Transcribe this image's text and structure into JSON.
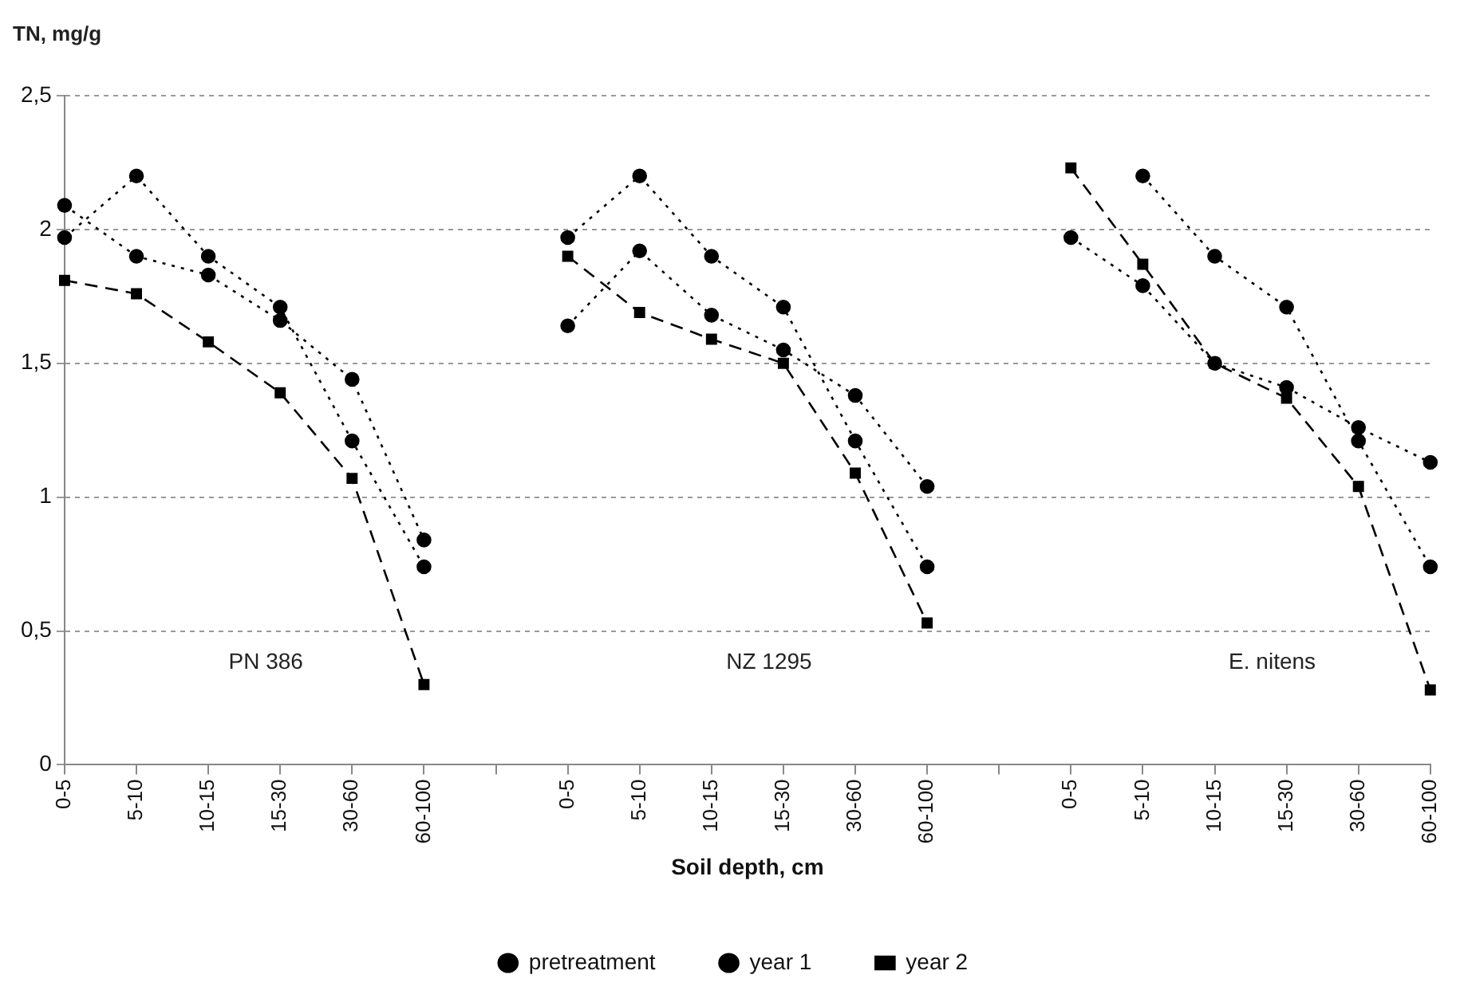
{
  "chart_data": {
    "type": "line",
    "xlabel": "Soil depth, cm",
    "ylabel": "TN, mg/g",
    "categories": [
      "0-5",
      "5-10",
      "10-15",
      "15-30",
      "30-60",
      "60-100",
      null,
      "0-5",
      "5-10",
      "10-15",
      "15-30",
      "30-60",
      "60-100",
      null,
      "0-5",
      "5-10",
      "10-15",
      "15-30",
      "30-60",
      "60-100"
    ],
    "series": [
      {
        "name": "pretreatment",
        "color": "#000000",
        "marker": "circle",
        "line_style": "dotted",
        "values": [
          1.97,
          2.2,
          1.9,
          1.71,
          1.21,
          0.74,
          null,
          1.97,
          2.2,
          1.9,
          1.71,
          1.21,
          0.74,
          null,
          null,
          2.2,
          1.9,
          1.71,
          1.21,
          0.74
        ]
      },
      {
        "name": "year 1",
        "color": "#000000",
        "marker": "circle",
        "line_style": "dotted",
        "values": [
          2.09,
          1.9,
          1.83,
          1.66,
          1.44,
          0.84,
          null,
          1.64,
          1.92,
          1.68,
          1.55,
          1.38,
          1.04,
          null,
          1.97,
          1.79,
          1.5,
          1.41,
          1.26,
          1.13
        ]
      },
      {
        "name": "year 2",
        "color": "#000000",
        "marker": "square",
        "line_style": "dashed",
        "values": [
          1.81,
          1.76,
          1.58,
          1.39,
          1.07,
          0.3,
          null,
          1.9,
          1.69,
          1.59,
          1.5,
          1.09,
          0.53,
          null,
          2.23,
          1.87,
          1.5,
          1.37,
          1.04,
          0.28
        ]
      }
    ],
    "ylim": [
      0,
      2.5
    ],
    "yticks": [
      0,
      {
        "value": 0.5,
        "label": "0,5"
      },
      1,
      {
        "value": 1.5,
        "label": "1,5"
      },
      2,
      {
        "value": 2.5,
        "label": "2,5"
      }
    ],
    "grid": "y",
    "legend": "bottom",
    "annotations": [
      "PN 386",
      "NZ 1295",
      "E. nitens"
    ]
  }
}
